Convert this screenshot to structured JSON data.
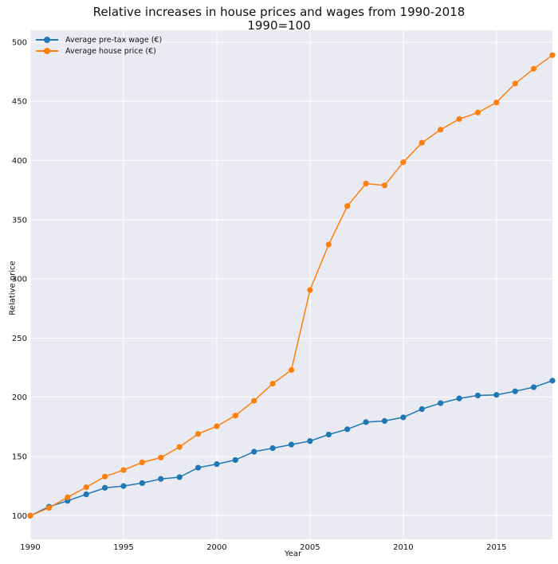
{
  "chart_data": {
    "type": "line",
    "title": "Relative increases in house prices and wages from 1990-2018",
    "subtitle": "1990=100",
    "xlabel": "Year",
    "ylabel": "Relative price",
    "xlim": [
      1990,
      2018
    ],
    "ylim": [
      80,
      510
    ],
    "x_ticks": [
      1990,
      1995,
      2000,
      2005,
      2010,
      2015
    ],
    "y_ticks": [
      100,
      150,
      200,
      250,
      300,
      350,
      400,
      450,
      500
    ],
    "grid": true,
    "legend_position": "top-left",
    "x": [
      1990,
      1991,
      1992,
      1993,
      1994,
      1995,
      1996,
      1997,
      1998,
      1999,
      2000,
      2001,
      2002,
      2003,
      2004,
      2005,
      2006,
      2007,
      2008,
      2009,
      2010,
      2011,
      2012,
      2013,
      2014,
      2015,
      2016,
      2017,
      2018
    ],
    "series": [
      {
        "name": "Average pre-tax wage (€)",
        "color": "#1f77b4",
        "values": [
          100,
          107.5,
          112.5,
          118,
          123.5,
          125,
          127.5,
          131,
          132.5,
          140.5,
          143.5,
          147,
          154,
          157,
          160,
          163,
          168.5,
          173,
          179,
          180,
          183,
          190,
          195,
          199,
          201.5,
          202,
          205,
          208.5,
          214
        ]
      },
      {
        "name": "Average house price (€)",
        "color": "#ff7f0e",
        "values": [
          100,
          106.5,
          115.5,
          124,
          133,
          138.5,
          145,
          149,
          158,
          169,
          175.5,
          184.5,
          197,
          211.5,
          223,
          290.5,
          329,
          361.5,
          380.5,
          379,
          398.5,
          415,
          426,
          435,
          440.5,
          449,
          465,
          477.5,
          489
        ]
      }
    ]
  }
}
